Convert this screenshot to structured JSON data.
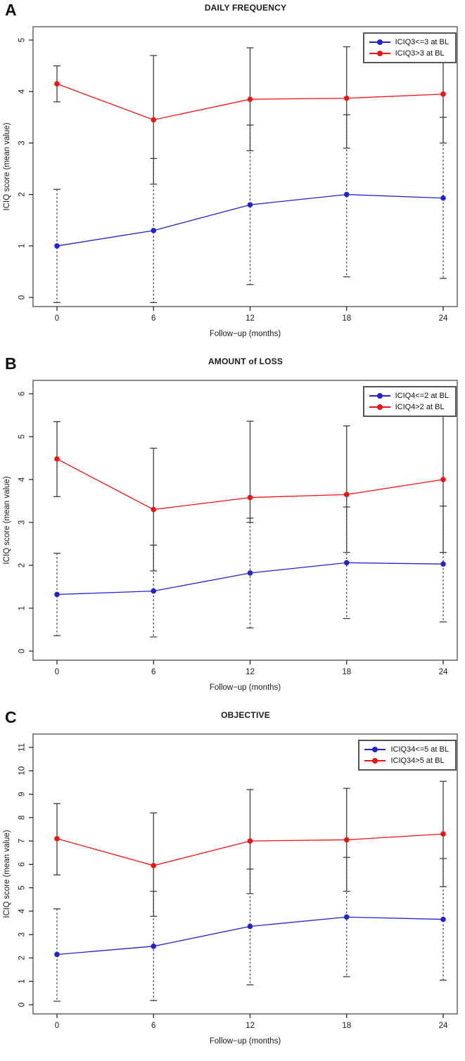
{
  "figure": {
    "xlabel": "Follow−up (months)",
    "ylabel": "ICIQ score (mean value)",
    "x_ticks": [
      0,
      6,
      12,
      18,
      24
    ],
    "colors": {
      "blue": "#2323cb",
      "red": "#ee1414",
      "errorbar": "#3f3f3f",
      "box": "#6e6e6e",
      "text": "#1a1a1a"
    }
  },
  "chart_data": [
    {
      "panel": "A",
      "type": "line",
      "title": "DAILY FREQUENCY",
      "xlabel": "Follow−up (months)",
      "ylabel": "ICIQ score (mean value)",
      "x": [
        0,
        6,
        12,
        18,
        24
      ],
      "ylim": [
        0,
        5
      ],
      "yticks": [
        0,
        1,
        2,
        3,
        4,
        5
      ],
      "legend_position": "top-right",
      "series": [
        {
          "name": "ICIQ3<=3 at BL",
          "color": "blue",
          "errorbar_style": "dashed",
          "values": [
            1.0,
            1.3,
            1.8,
            2.0,
            1.93
          ],
          "err_low": [
            -0.1,
            -0.1,
            0.25,
            0.4,
            0.37
          ],
          "err_high": [
            2.1,
            2.7,
            3.35,
            3.55,
            3.5
          ]
        },
        {
          "name": "ICIQ3>3 at BL",
          "color": "red",
          "errorbar_style": "solid",
          "values": [
            4.15,
            3.45,
            3.85,
            3.87,
            3.95
          ],
          "err_low": [
            3.8,
            2.2,
            2.85,
            2.9,
            3.0
          ],
          "err_high": [
            4.5,
            4.7,
            4.85,
            4.87,
            4.9
          ]
        }
      ]
    },
    {
      "panel": "B",
      "type": "line",
      "title": "AMOUNT of LOSS",
      "xlabel": "Follow−up (months)",
      "ylabel": "ICIQ score (mean value)",
      "x": [
        0,
        6,
        12,
        18,
        24
      ],
      "ylim": [
        0,
        6
      ],
      "yticks": [
        0,
        1,
        2,
        3,
        4,
        5,
        6
      ],
      "legend_position": "top-right",
      "series": [
        {
          "name": "ICIQ4<=2 at BL",
          "color": "blue",
          "errorbar_style": "dashed",
          "values": [
            1.32,
            1.4,
            1.82,
            2.06,
            2.03
          ],
          "err_low": [
            0.36,
            0.33,
            0.54,
            0.76,
            0.68
          ],
          "err_high": [
            2.28,
            2.47,
            3.1,
            3.36,
            3.38
          ]
        },
        {
          "name": "ICIQ4>2 at BL",
          "color": "red",
          "errorbar_style": "solid",
          "values": [
            4.48,
            3.3,
            3.58,
            3.65,
            4.0
          ],
          "err_low": [
            3.6,
            1.87,
            3.0,
            2.3,
            2.3
          ],
          "err_high": [
            5.35,
            4.73,
            5.36,
            5.25,
            5.55
          ]
        }
      ]
    },
    {
      "panel": "C",
      "type": "line",
      "title": "OBJECTIVE",
      "xlabel": "Follow−up (months)",
      "ylabel": "ICIQ score (mean value)",
      "x": [
        0,
        6,
        12,
        18,
        24
      ],
      "ylim": [
        0,
        11
      ],
      "yticks": [
        0,
        1,
        2,
        3,
        4,
        5,
        6,
        7,
        8,
        9,
        10,
        11
      ],
      "legend_position": "top-right",
      "series": [
        {
          "name": "ICIQ34<=5 at BL",
          "color": "blue",
          "errorbar_style": "dashed",
          "values": [
            2.15,
            2.5,
            3.35,
            3.75,
            3.65
          ],
          "err_low": [
            0.15,
            0.18,
            0.85,
            1.2,
            1.05
          ],
          "err_high": [
            4.1,
            4.85,
            5.8,
            6.3,
            6.25
          ]
        },
        {
          "name": "ICIQ34>5 at BL",
          "color": "red",
          "errorbar_style": "solid",
          "values": [
            7.1,
            5.95,
            7.0,
            7.05,
            7.3
          ],
          "err_low": [
            5.55,
            3.78,
            4.75,
            4.85,
            5.05
          ],
          "err_high": [
            8.6,
            8.2,
            9.2,
            9.25,
            9.55
          ]
        }
      ]
    }
  ]
}
